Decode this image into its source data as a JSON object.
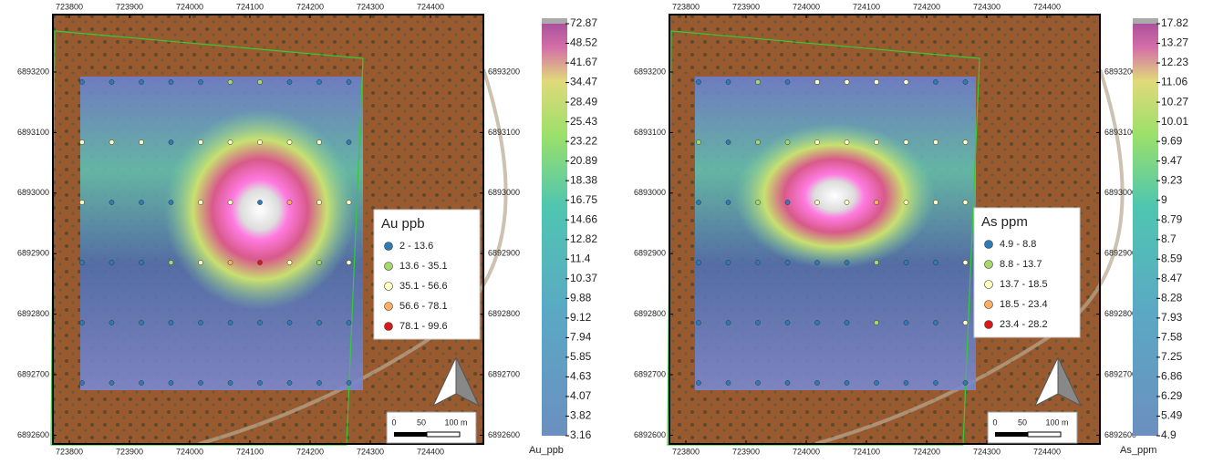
{
  "maps": [
    {
      "x_ticks": [
        723800,
        723900,
        724000,
        724100,
        724200,
        724300,
        724400
      ],
      "y_ticks": [
        6893200,
        6893100,
        6893000,
        6892900,
        6892800,
        6892700,
        6892600
      ],
      "legend": {
        "title": "Au ppb",
        "classes": [
          {
            "label": "2 - 13.6",
            "color": "#2c7bb6"
          },
          {
            "label": "13.6 - 35.1",
            "color": "#a6d96a"
          },
          {
            "label": "35.1 - 56.6",
            "color": "#ffffbf"
          },
          {
            "label": "56.6 - 78.1",
            "color": "#fdae61"
          },
          {
            "label": "78.1 - 99.6",
            "color": "#d7191c"
          }
        ]
      },
      "colorbar": {
        "title": "Au_ppb",
        "labels": [
          72.87,
          48.52,
          41.67,
          34.47,
          28.49,
          25.43,
          23.22,
          20.89,
          18.38,
          16.75,
          14.66,
          12.82,
          11.4,
          10.37,
          9.88,
          9.12,
          7.94,
          5.85,
          4.63,
          4.07,
          3.82,
          3.16
        ]
      },
      "scale": [
        "0",
        "50",
        "100 m"
      ]
    },
    {
      "x_ticks": [
        723800,
        723900,
        724000,
        724100,
        724200,
        724300,
        724400
      ],
      "y_ticks": [
        6893200,
        6893100,
        6893000,
        6892900,
        6892800,
        6892700,
        6892600
      ],
      "legend": {
        "title": "As ppm",
        "classes": [
          {
            "label": "4.9 - 8.8",
            "color": "#2c7bb6"
          },
          {
            "label": "8.8 - 13.7",
            "color": "#a6d96a"
          },
          {
            "label": "13.7 - 18.5",
            "color": "#ffffbf"
          },
          {
            "label": "18.5 - 23.4",
            "color": "#fdae61"
          },
          {
            "label": "23.4 - 28.2",
            "color": "#d7191c"
          }
        ]
      },
      "colorbar": {
        "title": "As_ppm",
        "labels": [
          17.82,
          13.27,
          12.23,
          11.06,
          10.27,
          10.01,
          9.69,
          9.47,
          9.23,
          9,
          8.79,
          8.7,
          8.59,
          8.47,
          8.28,
          7.93,
          7.58,
          7.25,
          6.86,
          6.29,
          5.49,
          4.9
        ]
      },
      "scale": [
        "0",
        "50",
        "100 m"
      ]
    }
  ]
}
